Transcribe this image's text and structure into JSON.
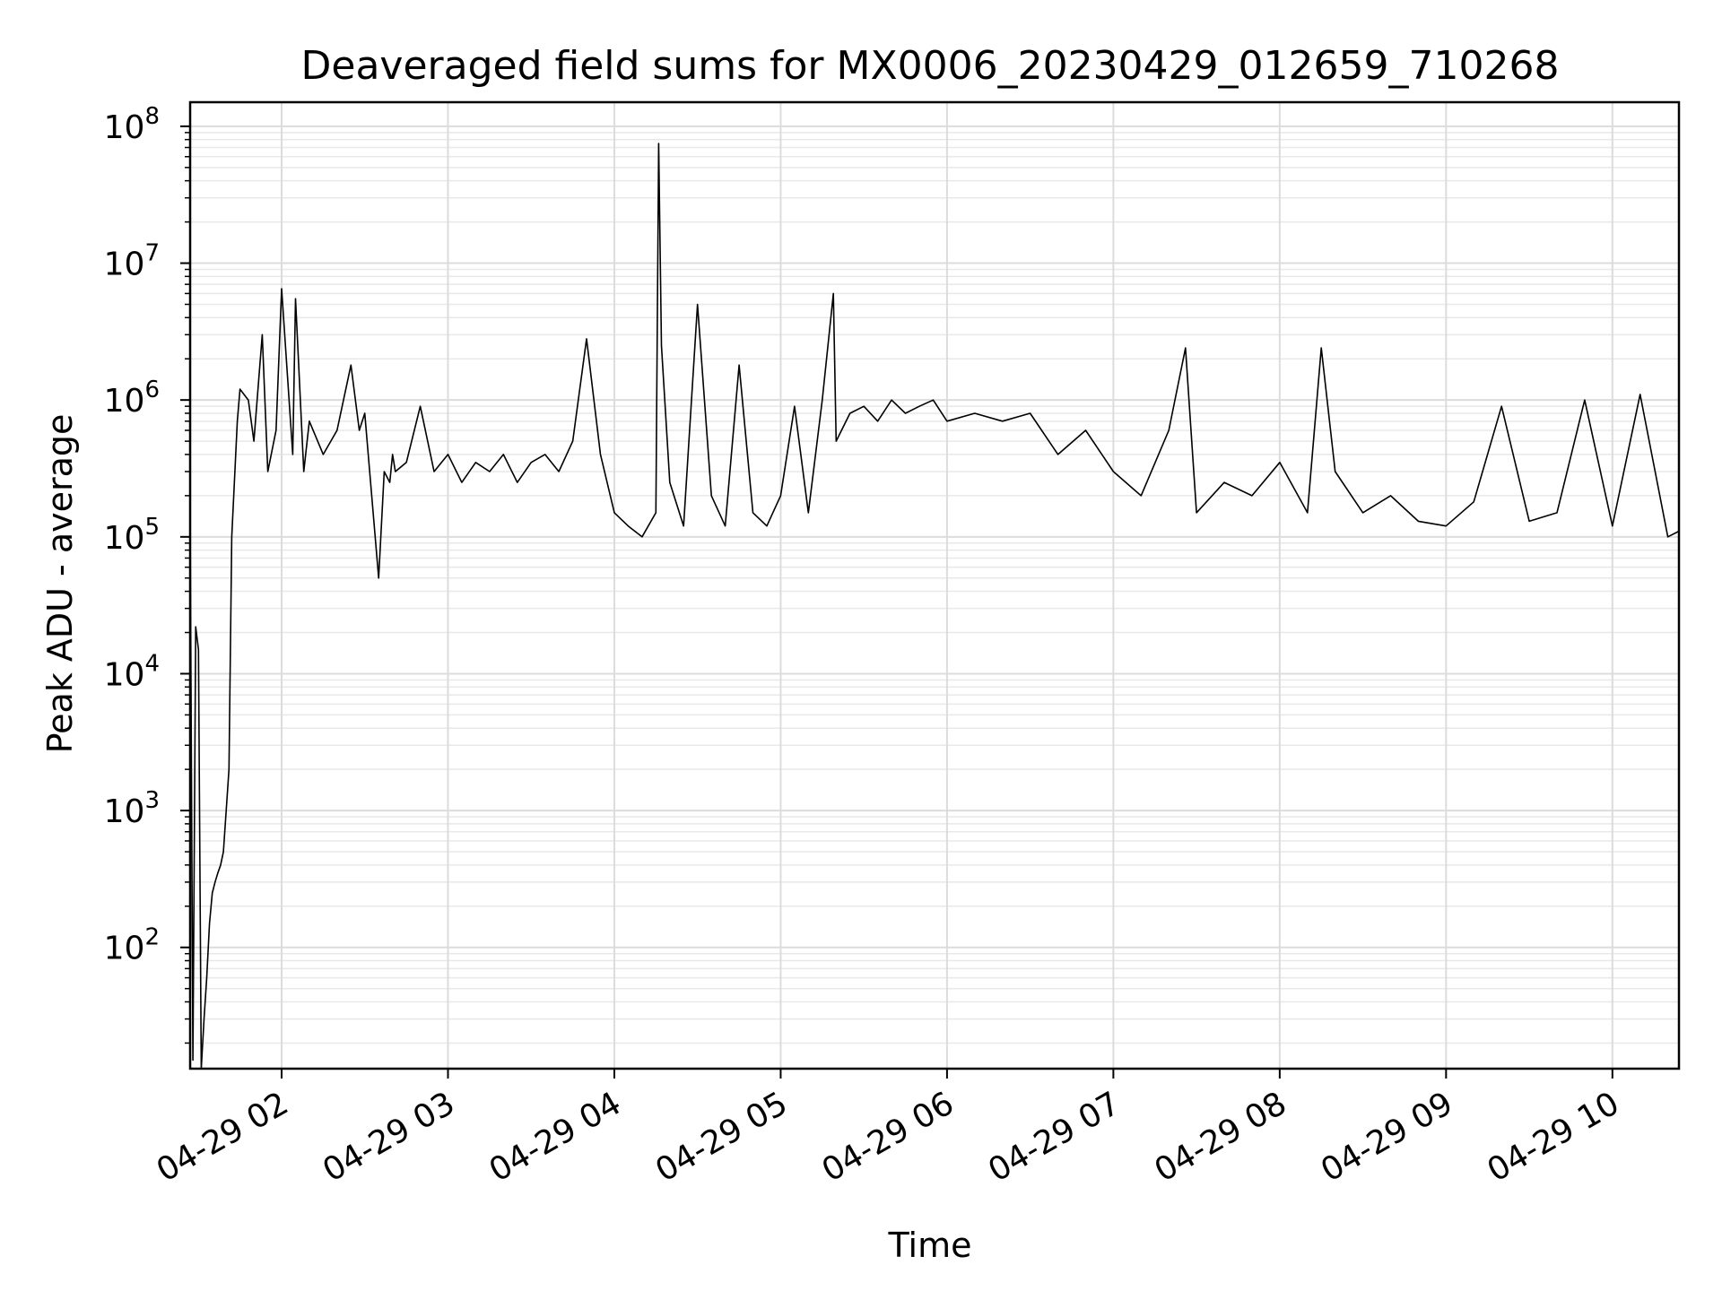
{
  "chart_data": {
    "type": "line",
    "title": "Deaveraged field sums for MX0006_20230429_012659_710268",
    "xlabel": "Time",
    "ylabel": "Peak ADU - average",
    "y_scale": "log",
    "ylim": [
      13,
      150000000
    ],
    "xlim": [
      "04-29 01:27",
      "04-29 10:24"
    ],
    "grid": true,
    "line_color": "#000000",
    "x_ticks": [
      "04-29 02",
      "04-29 03",
      "04-29 04",
      "04-29 05",
      "04-29 06",
      "04-29 07",
      "04-29 08",
      "04-29 09",
      "04-29 10"
    ],
    "y_ticks": [
      {
        "base": "10",
        "exp": "2",
        "value": 100
      },
      {
        "base": "10",
        "exp": "3",
        "value": 1000
      },
      {
        "base": "10",
        "exp": "4",
        "value": 10000
      },
      {
        "base": "10",
        "exp": "5",
        "value": 100000
      },
      {
        "base": "10",
        "exp": "6",
        "value": 1000000
      },
      {
        "base": "10",
        "exp": "7",
        "value": 10000000
      },
      {
        "base": "10",
        "exp": "8",
        "value": 100000000
      }
    ],
    "series": [
      {
        "x": [
          "04-29 01:27",
          "04-29 01:28",
          "04-29 01:29",
          "04-29 01:30",
          "04-29 01:31",
          "04-29 01:32",
          "04-29 01:33",
          "04-29 01:34",
          "04-29 01:35",
          "04-29 01:36",
          "04-29 01:37",
          "04-29 01:38",
          "04-29 01:39",
          "04-29 01:41",
          "04-29 01:42",
          "04-29 01:44",
          "04-29 01:45",
          "04-29 01:48",
          "04-29 01:50",
          "04-29 01:53",
          "04-29 01:55",
          "04-29 01:58",
          "04-29 02:00",
          "04-29 02:04",
          "04-29 02:05",
          "04-29 02:08",
          "04-29 02:10",
          "04-29 02:15",
          "04-29 02:20",
          "04-29 02:25",
          "04-29 02:28",
          "04-29 02:30",
          "04-29 02:35",
          "04-29 02:37",
          "04-29 02:39",
          "04-29 02:40",
          "04-29 02:41",
          "04-29 02:45",
          "04-29 02:50",
          "04-29 02:55",
          "04-29 03:00",
          "04-29 03:05",
          "04-29 03:10",
          "04-29 03:15",
          "04-29 03:20",
          "04-29 03:25",
          "04-29 03:30",
          "04-29 03:35",
          "04-29 03:40",
          "04-29 03:45",
          "04-29 03:50",
          "04-29 03:55",
          "04-29 04:00",
          "04-29 04:05",
          "04-29 04:10",
          "04-29 04:15",
          "04-29 04:16",
          "04-29 04:17",
          "04-29 04:20",
          "04-29 04:25",
          "04-29 04:30",
          "04-29 04:35",
          "04-29 04:40",
          "04-29 04:45",
          "04-29 04:50",
          "04-29 04:55",
          "04-29 05:00",
          "04-29 05:05",
          "04-29 05:10",
          "04-29 05:15",
          "04-29 05:19",
          "04-29 05:20",
          "04-29 05:25",
          "04-29 05:30",
          "04-29 05:35",
          "04-29 05:40",
          "04-29 05:45",
          "04-29 05:50",
          "04-29 05:55",
          "04-29 06:00",
          "04-29 06:10",
          "04-29 06:20",
          "04-29 06:30",
          "04-29 06:40",
          "04-29 06:50",
          "04-29 07:00",
          "04-29 07:10",
          "04-29 07:20",
          "04-29 07:26",
          "04-29 07:30",
          "04-29 07:40",
          "04-29 07:50",
          "04-29 08:00",
          "04-29 08:10",
          "04-29 08:15",
          "04-29 08:20",
          "04-29 08:30",
          "04-29 08:40",
          "04-29 08:50",
          "04-29 09:00",
          "04-29 09:10",
          "04-29 09:20",
          "04-29 09:30",
          "04-29 09:40",
          "04-29 09:50",
          "04-29 10:00",
          "04-29 10:10",
          "04-29 10:20",
          "04-29 10:24"
        ],
        "y": [
          150000,
          15,
          22000,
          15000,
          13,
          30,
          60,
          150,
          250,
          300,
          350,
          400,
          500,
          2000,
          100000,
          700000,
          1200000,
          1000000,
          500000,
          3000000,
          300000,
          600000,
          6500000,
          400000,
          5500000,
          300000,
          700000,
          400000,
          600000,
          1800000,
          600000,
          800000,
          50000,
          300000,
          250000,
          400000,
          300000,
          350000,
          900000,
          300000,
          400000,
          250000,
          350000,
          300000,
          400000,
          250000,
          350000,
          400000,
          300000,
          500000,
          2800000,
          400000,
          150000,
          120000,
          100000,
          150000,
          75000000,
          2500000,
          250000,
          120000,
          5000000,
          200000,
          120000,
          1800000,
          150000,
          120000,
          200000,
          900000,
          150000,
          1000000,
          6000000,
          500000,
          800000,
          900000,
          700000,
          1000000,
          800000,
          900000,
          1000000,
          700000,
          800000,
          700000,
          800000,
          400000,
          600000,
          300000,
          200000,
          600000,
          2400000,
          150000,
          250000,
          200000,
          350000,
          150000,
          2400000,
          300000,
          150000,
          200000,
          130000,
          120000,
          180000,
          900000,
          130000,
          150000,
          1000000,
          120000,
          1100000,
          100000,
          110000
        ]
      }
    ]
  }
}
